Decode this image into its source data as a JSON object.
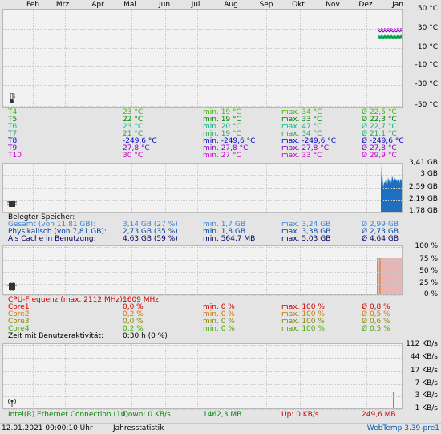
{
  "months": [
    "Feb",
    "Mrz",
    "Apr",
    "Mai",
    "Jun",
    "Jul",
    "Aug",
    "Sep",
    "Okt",
    "Nov",
    "Dez",
    "Jan"
  ],
  "temp_axis": [
    "50 °C",
    "30 °C",
    "10 °C",
    "-10 °C",
    "-30 °C",
    "-50 °C"
  ],
  "temp_rows": [
    {
      "name": "T4",
      "cur": "23 °C",
      "min": "min. 19 °C",
      "max": "max. 34 °C",
      "avg": "Ø 22,5 °C",
      "color": "#44bb00"
    },
    {
      "name": "T5",
      "cur": "22 °C",
      "min": "min. 19 °C",
      "max": "max. 33 °C",
      "avg": "Ø 22,3 °C",
      "color": "#008800"
    },
    {
      "name": "T6",
      "cur": "23 °C",
      "min": "min. 20 °C",
      "max": "max. 47 °C",
      "avg": "Ø 22,7 °C",
      "color": "#00bb88"
    },
    {
      "name": "T7",
      "cur": "21 °C",
      "min": "min. 19 °C",
      "max": "max. 34 °C",
      "avg": "Ø 21,1 °C",
      "color": "#22aa66"
    },
    {
      "name": "T8",
      "cur": "-249,6 °C",
      "min": "min. -249,6 °C",
      "max": "max. -249,6 °C",
      "avg": "Ø -249,6 °C",
      "color": "#0000cc"
    },
    {
      "name": "T9",
      "cur": "27,8 °C",
      "min": "min. 27,8 °C",
      "max": "max. 27,8 °C",
      "avg": "Ø 27,8 °C",
      "color": "#8800cc"
    },
    {
      "name": "T10",
      "cur": "30 °C",
      "min": "min. 27 °C",
      "max": "max. 33 °C",
      "avg": "Ø 29,9 °C",
      "color": "#cc00cc"
    }
  ],
  "mem_axis": [
    "3,41 GB",
    "3 GB",
    "2,59 GB",
    "2,19 GB",
    "1,78 GB"
  ],
  "mem_header": "Belegter Speicher:",
  "mem_rows": [
    {
      "name": "Gesamt (von 11,81 GB):",
      "cur": "3,14 GB (27 %)",
      "min": "min. 1,7 GB",
      "max": "max. 3,24 GB",
      "avg": "Ø 2,99 GB",
      "color": "#3388dd"
    },
    {
      "name": "Physikalisch (von 7,81 GB):",
      "cur": "2,73 GB (35 %)",
      "min": "min. 1,8 GB",
      "max": "max. 3,38 GB",
      "avg": "Ø 2,73 GB",
      "color": "#0044aa"
    },
    {
      "name": "Als Cache in Benutzung:",
      "cur": "4,63 GB (59 %)",
      "min": "min. 564,7 MB",
      "max": "max. 5,03 GB",
      "avg": "Ø 4,64 GB",
      "color": "#000066"
    }
  ],
  "cpu_axis": [
    "100 %",
    "75 %",
    "50 %",
    "25 %",
    "0 %"
  ],
  "cpu_header": {
    "label": "CPU-Frequenz (max. 2112 MHz):",
    "value": "1609 MHz",
    "color": "#cc0000"
  },
  "cpu_rows": [
    {
      "name": "Core1",
      "cur": "0,0 %",
      "min": "min. 0 %",
      "max": "max. 100 %",
      "avg": "Ø 0,8 %",
      "color": "#cc0000"
    },
    {
      "name": "Core2",
      "cur": "0,2 %",
      "min": "min. 0 %",
      "max": "max. 100 %",
      "avg": "Ø 0,5 %",
      "color": "#cc7700"
    },
    {
      "name": "Core3",
      "cur": "0,0 %",
      "min": "min. 0 %",
      "max": "max. 100 %",
      "avg": "Ø 0,6 %",
      "color": "#888800"
    },
    {
      "name": "Core4",
      "cur": "0,2 %",
      "min": "min. 0 %",
      "max": "max. 100 %",
      "avg": "Ø 0,5 %",
      "color": "#44aa00"
    }
  ],
  "activity": {
    "label": "Zeit mit Benutzeraktivität:",
    "value": "0:30 h (0 %)"
  },
  "net_axis": [
    "112 KB/s",
    "44 KB/s",
    "17 KB/s",
    "7 KB/s",
    "3 KB/s",
    "1 KB/s"
  ],
  "net_row": {
    "name": "Intel(R) Ethernet Connection (10)",
    "down": "Down: 0 KB/s",
    "down_total": "1462,3 MB",
    "up": "Up: 0 KB/s",
    "up_total": "249,6 MB",
    "down_color": "#008800",
    "up_color": "#cc0000"
  },
  "footer": {
    "timestamp": "12.01.2021 00:00:10 Uhr",
    "mode": "Jahresstatistik",
    "app": "WebTemp 3.39-pre1",
    "app_color": "#0055aa"
  },
  "colors": {
    "mem_fill": "#1f6fc0",
    "cpu_fill": "#e6b5b5",
    "cpu_line": "#cc0000",
    "net_line": "#00aa00"
  }
}
